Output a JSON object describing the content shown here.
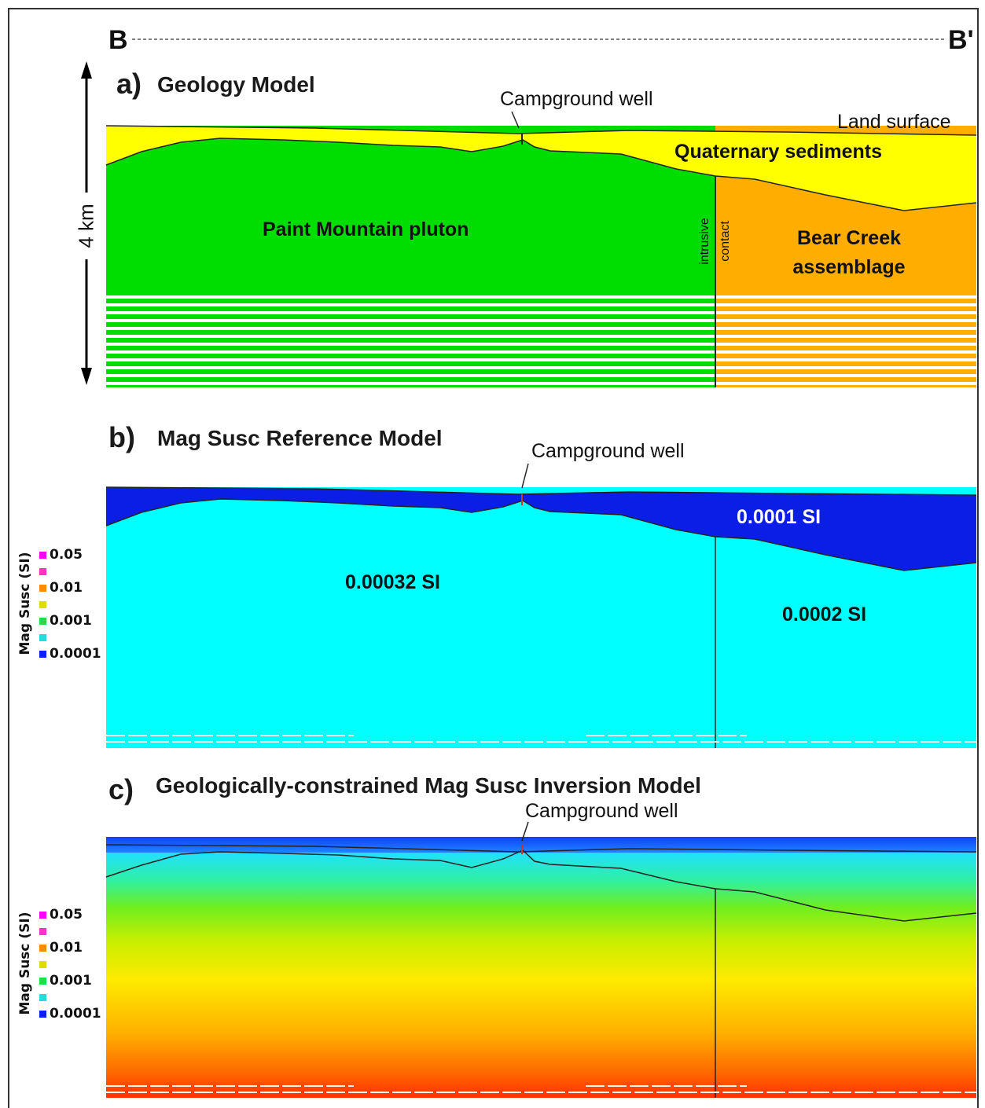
{
  "section_line": {
    "left_label": "B",
    "right_label": "B'"
  },
  "scale_bar": {
    "label": "4 km"
  },
  "panel_a": {
    "letter": "a)",
    "title": "Geology Model",
    "well_label": "Campground well",
    "land_surface_label": "Land surface",
    "sediments_label": "Quaternary sediments",
    "pluton_label": "Paint Mountain pluton",
    "contact_label_1": "intrusive",
    "contact_label_2": "contact",
    "assemblage_label_1": "Bear Creek",
    "assemblage_label_2": "assemblage",
    "colors": {
      "sediments": "#ffff00",
      "pluton": "#00dd00",
      "assemblage": "#ffae00"
    }
  },
  "panel_b": {
    "letter": "b)",
    "title": "Mag Susc Reference Model",
    "well_label": "Campground well",
    "upper_value": "0.0001 SI",
    "pluton_value": "0.00032 SI",
    "assemblage_value": "0.0002 SI",
    "colors": {
      "upper": "#0a1ee6",
      "lower": "#00ffff"
    }
  },
  "panel_c": {
    "letter": "c)",
    "title": "Geologically-constrained Mag Susc Inversion Model",
    "well_label": "Campground well"
  },
  "legend": {
    "title": "Mag Susc (SI)",
    "ticks": [
      "0.05",
      "0.01",
      "0.001",
      "0.0001"
    ],
    "swatch_colors": [
      "#ff00ff",
      "#ff33cc",
      "#ff8c00",
      "#dddd00",
      "#22dd44",
      "#22dddd",
      "#0020ff"
    ]
  }
}
